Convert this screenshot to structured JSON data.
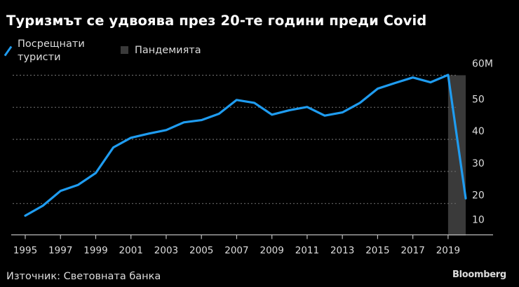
{
  "title": "Туризмът се удвоява през 20-те години преди Covid",
  "legend": {
    "series_line1": "Посрещнати",
    "series_line2": "туристи",
    "shade": "Пандемията"
  },
  "source": "Източник: Световната банка",
  "brand": "Bloomberg",
  "colors": {
    "line": "#1f9cf0",
    "shade": "#3a3a3a",
    "grid": "#666666",
    "text": "#dddddd",
    "background": "#000000"
  },
  "chart_data": {
    "type": "line",
    "title": "Туризмът се удвоява през 20-те години преди Covid",
    "xlabel": "",
    "ylabel": "",
    "x": [
      1995,
      1996,
      1997,
      1998,
      1999,
      2000,
      2001,
      2002,
      2003,
      2004,
      2005,
      2006,
      2007,
      2008,
      2009,
      2010,
      2011,
      2012,
      2013,
      2014,
      2015,
      2016,
      2017,
      2018,
      2019,
      2020
    ],
    "series": [
      {
        "name": "Посрещнати туристи",
        "values": [
          16.2,
          19.3,
          23.9,
          25.8,
          29.5,
          37.5,
          40.5,
          41.8,
          42.9,
          45.3,
          46.0,
          48.0,
          52.3,
          51.4,
          47.7,
          49.1,
          50.1,
          47.4,
          48.4,
          51.4,
          55.8,
          57.6,
          59.3,
          57.8,
          60.1,
          21.6
        ]
      }
    ],
    "shaded_region": {
      "label": "Пандемията",
      "from": 2019,
      "to": 2020
    },
    "x_tick_labels": [
      "1995",
      "1997",
      "1999",
      "2001",
      "2003",
      "2005",
      "2007",
      "2009",
      "2011",
      "2013",
      "2015",
      "2017",
      "2019"
    ],
    "y_tick_labels": [
      "10",
      "20",
      "30",
      "40",
      "50",
      "60M"
    ],
    "y_ticks": [
      10,
      20,
      30,
      40,
      50,
      60
    ],
    "ylim": [
      10,
      60
    ],
    "grid": true,
    "y_axis_position": "right",
    "legend_position": "top-left"
  }
}
